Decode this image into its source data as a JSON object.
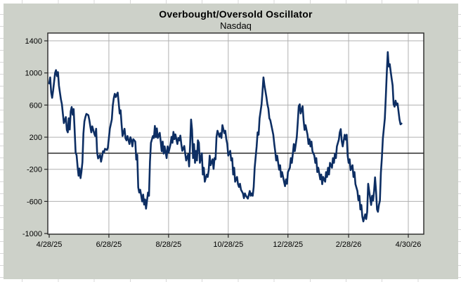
{
  "title": "Overbought/Oversold Oscillator",
  "subtitle": "Nasdaq",
  "colors": {
    "chart_background": "#cdd1c9",
    "plot_background": "#ffffff",
    "gridline": "#b0b0b0",
    "zero_line": "#000000",
    "plot_border": "#262626",
    "series_line": "#0d2e63",
    "label_text": "#000000",
    "worksheet_gridline": "#d8d8d8"
  },
  "chart_data": {
    "type": "line",
    "title": "Overbought/Oversold Oscillator",
    "subtitle": "Nasdaq",
    "xlabel": "",
    "ylabel": "",
    "grid": true,
    "legend": false,
    "x_axis": {
      "unit": "calendar days since 4/28/25",
      "ticks": [
        {
          "d": 0,
          "label": "4/28/25"
        },
        {
          "d": 61,
          "label": "6/28/25"
        },
        {
          "d": 122,
          "label": "8/28/25"
        },
        {
          "d": 183,
          "label": "10/28/25"
        },
        {
          "d": 244,
          "label": "12/28/25"
        },
        {
          "d": 306,
          "label": "2/28/26"
        },
        {
          "d": 367,
          "label": "4/30/26"
        }
      ]
    },
    "y_axis": {
      "min": -1000,
      "max": 1500,
      "major_unit": 400,
      "ticks": [
        1400,
        1000,
        600,
        200,
        -200,
        -600,
        -1000
      ],
      "zero_line": true
    },
    "series": [
      {
        "name": "Overbought/Oversold Oscillator (Nasdaq)",
        "color": "#0d2e63",
        "points": [
          [
            0,
            870
          ],
          [
            1,
            945
          ],
          [
            2,
            760
          ],
          [
            3,
            690
          ],
          [
            4,
            780
          ],
          [
            5,
            890
          ],
          [
            6,
            1000
          ],
          [
            7,
            1035
          ],
          [
            8,
            960
          ],
          [
            9,
            1010
          ],
          [
            10,
            840
          ],
          [
            12,
            670
          ],
          [
            13,
            610
          ],
          [
            14,
            490
          ],
          [
            15,
            375
          ],
          [
            17,
            450
          ],
          [
            18,
            290
          ],
          [
            19,
            260
          ],
          [
            20,
            435
          ],
          [
            21,
            295
          ],
          [
            22,
            520
          ],
          [
            23,
            575
          ],
          [
            24,
            480
          ],
          [
            25,
            550
          ],
          [
            26,
            290
          ],
          [
            27,
            10
          ],
          [
            28,
            -25
          ],
          [
            29,
            -165
          ],
          [
            30,
            -280
          ],
          [
            31,
            -190
          ],
          [
            32,
            -310
          ],
          [
            33,
            -230
          ],
          [
            34,
            -110
          ],
          [
            35,
            245
          ],
          [
            36,
            395
          ],
          [
            37,
            450
          ],
          [
            38,
            490
          ],
          [
            40,
            475
          ],
          [
            41,
            415
          ],
          [
            42,
            335
          ],
          [
            43,
            260
          ],
          [
            44,
            335
          ],
          [
            46,
            245
          ],
          [
            47,
            215
          ],
          [
            48,
            305
          ],
          [
            49,
            10
          ],
          [
            50,
            -65
          ],
          [
            52,
            -20
          ],
          [
            53,
            -105
          ],
          [
            54,
            -45
          ],
          [
            55,
            25
          ],
          [
            56,
            10
          ],
          [
            57,
            55
          ],
          [
            59,
            40
          ],
          [
            60,
            70
          ],
          [
            61,
            185
          ],
          [
            62,
            305
          ],
          [
            64,
            420
          ],
          [
            65,
            595
          ],
          [
            66,
            685
          ],
          [
            67,
            740
          ],
          [
            68,
            700
          ],
          [
            70,
            755
          ],
          [
            71,
            625
          ],
          [
            72,
            495
          ],
          [
            73,
            535
          ],
          [
            74,
            360
          ],
          [
            75,
            215
          ],
          [
            77,
            305
          ],
          [
            78,
            185
          ],
          [
            79,
            160
          ],
          [
            80,
            215
          ],
          [
            82,
            115
          ],
          [
            83,
            200
          ],
          [
            84,
            160
          ],
          [
            85,
            85
          ],
          [
            86,
            175
          ],
          [
            88,
            145
          ],
          [
            89,
            -80
          ],
          [
            90,
            -20
          ],
          [
            91,
            -425
          ],
          [
            92,
            -490
          ],
          [
            93,
            -455
          ],
          [
            95,
            -600
          ],
          [
            96,
            -515
          ],
          [
            97,
            -640
          ],
          [
            98,
            -575
          ],
          [
            99,
            -690
          ],
          [
            101,
            -490
          ],
          [
            102,
            -530
          ],
          [
            103,
            -105
          ],
          [
            104,
            130
          ],
          [
            106,
            215
          ],
          [
            107,
            190
          ],
          [
            108,
            340
          ],
          [
            109,
            200
          ],
          [
            110,
            310
          ],
          [
            111,
            190
          ],
          [
            113,
            255
          ],
          [
            114,
            145
          ],
          [
            115,
            25
          ],
          [
            116,
            145
          ],
          [
            117,
            -5
          ],
          [
            118,
            85
          ],
          [
            120,
            -60
          ],
          [
            121,
            85
          ],
          [
            122,
            10
          ],
          [
            124,
            115
          ],
          [
            125,
            205
          ],
          [
            126,
            130
          ],
          [
            127,
            265
          ],
          [
            128,
            175
          ],
          [
            129,
            235
          ],
          [
            131,
            115
          ],
          [
            132,
            190
          ],
          [
            133,
            160
          ],
          [
            134,
            220
          ],
          [
            135,
            115
          ],
          [
            136,
            30
          ],
          [
            138,
            90
          ],
          [
            139,
            0
          ],
          [
            140,
            -90
          ],
          [
            142,
            -15
          ],
          [
            143,
            -165
          ],
          [
            144,
            100
          ],
          [
            145,
            420
          ],
          [
            146,
            290
          ],
          [
            147,
            -60
          ],
          [
            148,
            115
          ],
          [
            149,
            -120
          ],
          [
            150,
            30
          ],
          [
            151,
            -90
          ],
          [
            152,
            160
          ],
          [
            153,
            130
          ],
          [
            154,
            -120
          ],
          [
            156,
            0
          ],
          [
            157,
            -265
          ],
          [
            158,
            -180
          ],
          [
            159,
            -355
          ],
          [
            161,
            -265
          ],
          [
            162,
            -295
          ],
          [
            163,
            -210
          ],
          [
            164,
            -30
          ],
          [
            165,
            -150
          ],
          [
            167,
            -75
          ],
          [
            168,
            -195
          ],
          [
            169,
            -60
          ],
          [
            170,
            -75
          ],
          [
            171,
            205
          ],
          [
            172,
            280
          ],
          [
            174,
            205
          ],
          [
            175,
            250
          ],
          [
            176,
            190
          ],
          [
            177,
            350
          ],
          [
            179,
            250
          ],
          [
            180,
            280
          ],
          [
            181,
            175
          ],
          [
            182,
            115
          ],
          [
            183,
            -30
          ],
          [
            185,
            30
          ],
          [
            186,
            -90
          ],
          [
            187,
            -60
          ],
          [
            188,
            -265
          ],
          [
            189,
            -180
          ],
          [
            190,
            -355
          ],
          [
            192,
            -295
          ],
          [
            193,
            -385
          ],
          [
            194,
            -420
          ],
          [
            195,
            -380
          ],
          [
            196,
            -455
          ],
          [
            198,
            -500
          ],
          [
            199,
            -560
          ],
          [
            200,
            -500
          ],
          [
            201,
            -530
          ],
          [
            203,
            -565
          ],
          [
            204,
            -520
          ],
          [
            205,
            -470
          ],
          [
            206,
            -530
          ],
          [
            207,
            -500
          ],
          [
            208,
            -530
          ],
          [
            209,
            -420
          ],
          [
            210,
            -180
          ],
          [
            212,
            85
          ],
          [
            213,
            260
          ],
          [
            214,
            230
          ],
          [
            215,
            435
          ],
          [
            217,
            610
          ],
          [
            218,
            760
          ],
          [
            219,
            945
          ],
          [
            220,
            845
          ],
          [
            222,
            700
          ],
          [
            223,
            610
          ],
          [
            224,
            555
          ],
          [
            225,
            435
          ],
          [
            226,
            410
          ],
          [
            228,
            290
          ],
          [
            229,
            230
          ],
          [
            230,
            115
          ],
          [
            231,
            25
          ],
          [
            232,
            -90
          ],
          [
            233,
            -30
          ],
          [
            235,
            -205
          ],
          [
            236,
            -150
          ],
          [
            237,
            -295
          ],
          [
            238,
            -235
          ],
          [
            240,
            -355
          ],
          [
            241,
            -410
          ],
          [
            242,
            -325
          ],
          [
            243,
            -380
          ],
          [
            244,
            -235
          ],
          [
            246,
            -180
          ],
          [
            247,
            -60
          ],
          [
            248,
            -120
          ],
          [
            249,
            -5
          ],
          [
            250,
            115
          ],
          [
            251,
            25
          ],
          [
            253,
            200
          ],
          [
            254,
            380
          ],
          [
            255,
            585
          ],
          [
            256,
            610
          ],
          [
            257,
            495
          ],
          [
            259,
            585
          ],
          [
            260,
            410
          ],
          [
            261,
            290
          ],
          [
            262,
            350
          ],
          [
            264,
            230
          ],
          [
            265,
            115
          ],
          [
            266,
            175
          ],
          [
            267,
            85
          ],
          [
            268,
            145
          ],
          [
            269,
            25
          ],
          [
            271,
            -30
          ],
          [
            272,
            -120
          ],
          [
            273,
            -60
          ],
          [
            274,
            -235
          ],
          [
            275,
            -180
          ],
          [
            277,
            -325
          ],
          [
            278,
            -265
          ],
          [
            279,
            -385
          ],
          [
            280,
            -295
          ],
          [
            282,
            -355
          ],
          [
            283,
            -235
          ],
          [
            284,
            -295
          ],
          [
            285,
            -180
          ],
          [
            286,
            -265
          ],
          [
            287,
            -120
          ],
          [
            289,
            -180
          ],
          [
            290,
            -60
          ],
          [
            291,
            -120
          ],
          [
            292,
            -5
          ],
          [
            293,
            -60
          ],
          [
            294,
            85
          ],
          [
            296,
            170
          ],
          [
            297,
            260
          ],
          [
            298,
            300
          ],
          [
            299,
            150
          ],
          [
            300,
            85
          ],
          [
            302,
            230
          ],
          [
            303,
            170
          ],
          [
            304,
            230
          ],
          [
            305,
            -30
          ],
          [
            306,
            -120
          ],
          [
            307,
            -75
          ],
          [
            308,
            -210
          ],
          [
            310,
            -150
          ],
          [
            311,
            -295
          ],
          [
            312,
            -235
          ],
          [
            313,
            -385
          ],
          [
            315,
            -470
          ],
          [
            316,
            -585
          ],
          [
            317,
            -530
          ],
          [
            318,
            -700
          ],
          [
            319,
            -645
          ],
          [
            320,
            -790
          ],
          [
            321,
            -850
          ],
          [
            323,
            -760
          ],
          [
            324,
            -820
          ],
          [
            325,
            -730
          ],
          [
            326,
            -380
          ],
          [
            327,
            -470
          ],
          [
            329,
            -645
          ],
          [
            330,
            -530
          ],
          [
            331,
            -590
          ],
          [
            332,
            -470
          ],
          [
            333,
            -300
          ],
          [
            334,
            -470
          ],
          [
            335,
            -700
          ],
          [
            336,
            -730
          ],
          [
            337,
            -645
          ],
          [
            338,
            -590
          ],
          [
            339,
            -240
          ],
          [
            340,
            -60
          ],
          [
            341,
            180
          ],
          [
            343,
            430
          ],
          [
            344,
            700
          ],
          [
            345,
            1000
          ],
          [
            346,
            1260
          ],
          [
            347,
            1080
          ],
          [
            348,
            1110
          ],
          [
            349,
            1020
          ],
          [
            350,
            930
          ],
          [
            351,
            845
          ],
          [
            352,
            610
          ],
          [
            353,
            580
          ],
          [
            354,
            655
          ],
          [
            355,
            600
          ],
          [
            356,
            620
          ],
          [
            357,
            520
          ],
          [
            358,
            420
          ],
          [
            359,
            360
          ],
          [
            360,
            370
          ]
        ]
      }
    ]
  }
}
